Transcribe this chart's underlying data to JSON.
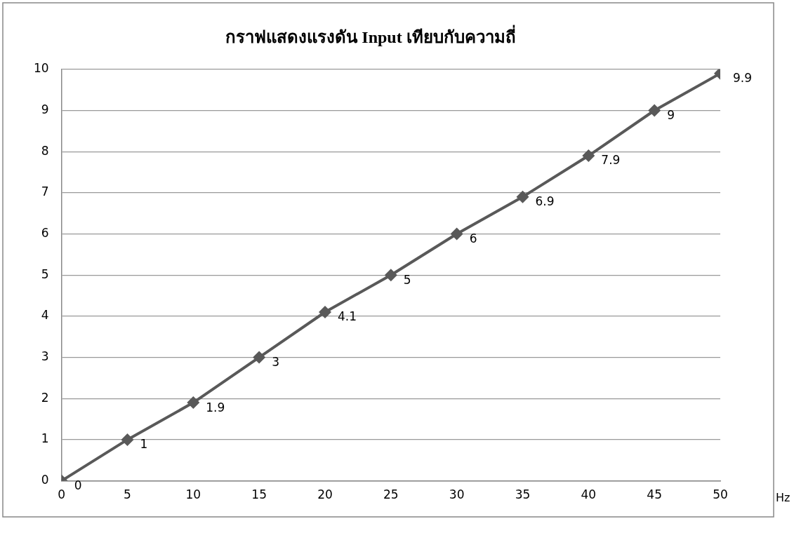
{
  "chart_data": {
    "type": "line",
    "title": "กราฟแสดงแรงดัน Input เทียบกับความถี่",
    "xlabel": "Hz",
    "x": [
      0,
      5,
      10,
      15,
      20,
      25,
      30,
      35,
      40,
      45,
      50
    ],
    "series": [
      {
        "color": "#595959",
        "values": [
          0,
          1,
          1.9,
          3,
          4.1,
          5,
          6,
          6.9,
          7.9,
          9,
          9.9
        ]
      }
    ],
    "xlim": [
      0,
      50
    ],
    "xticks": [
      0,
      5,
      10,
      15,
      20,
      25,
      30,
      35,
      40,
      45,
      50
    ],
    "ylim": [
      0,
      10
    ],
    "yticks": [
      0,
      1,
      2,
      3,
      4,
      5,
      6,
      7,
      8,
      9,
      10
    ],
    "grid": "y",
    "legend": false,
    "marker": "diamond",
    "line_style": "solid",
    "data_labels": true
  }
}
